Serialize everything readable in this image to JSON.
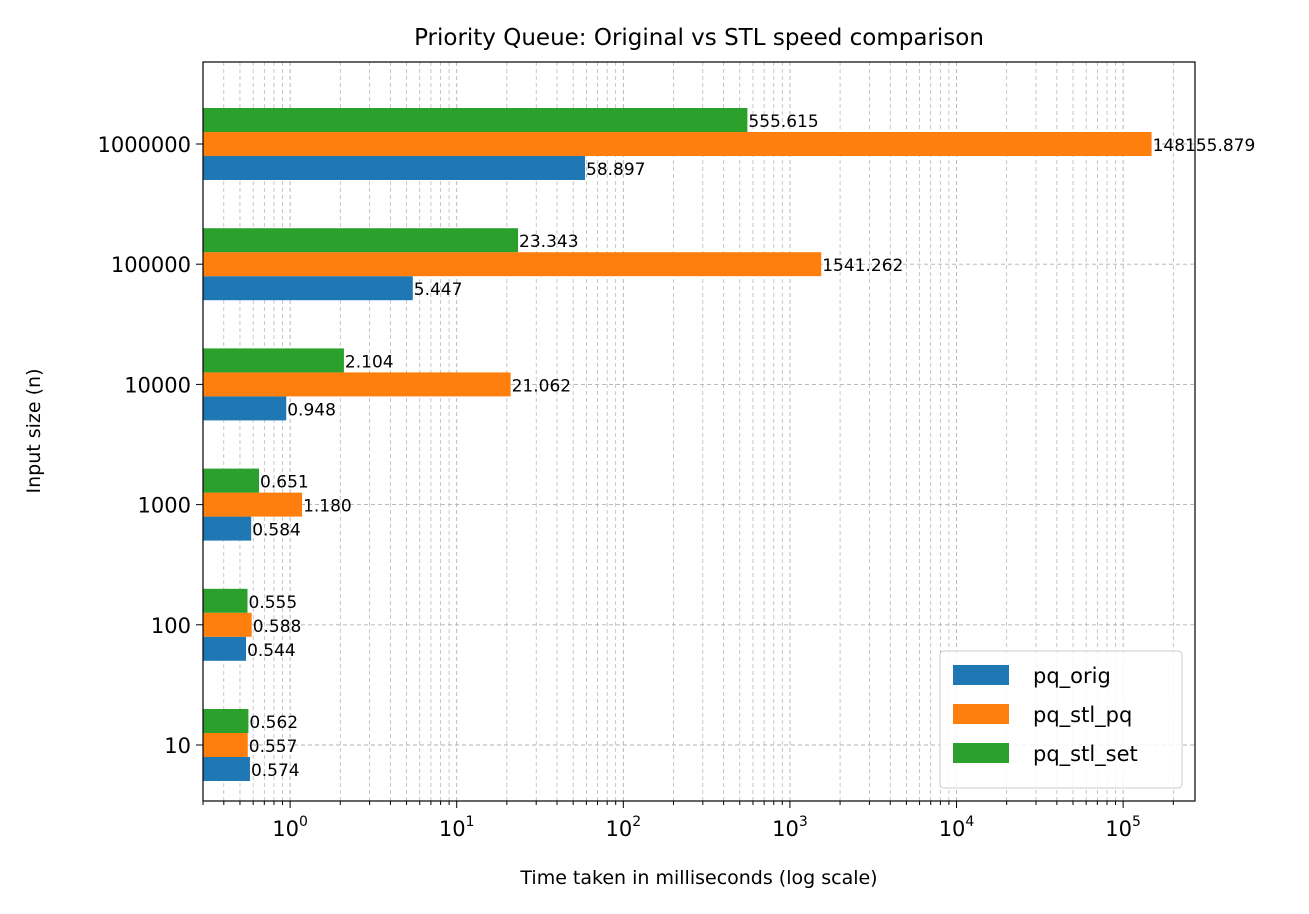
{
  "chart_data": {
    "type": "bar",
    "orientation": "horizontal",
    "title": "Priority Queue: Original vs STL speed comparison",
    "xlabel": "Time taken in milliseconds (log scale)",
    "ylabel": "Input size (n)",
    "x_scale": "log",
    "xlim": [
      0.3,
      270000
    ],
    "x_ticks": [
      {
        "value": 1,
        "base": "10",
        "exp": "0"
      },
      {
        "value": 10,
        "base": "10",
        "exp": "1"
      },
      {
        "value": 100,
        "base": "10",
        "exp": "2"
      },
      {
        "value": 1000,
        "base": "10",
        "exp": "3"
      },
      {
        "value": 10000,
        "base": "10",
        "exp": "4"
      },
      {
        "value": 100000,
        "base": "10",
        "exp": "5"
      }
    ],
    "categories": [
      "10",
      "100",
      "1000",
      "10000",
      "100000",
      "1000000"
    ],
    "series": [
      {
        "name": "pq_orig",
        "color": "#1f77b4",
        "values": [
          0.574,
          0.544,
          0.584,
          0.948,
          5.447,
          58.897
        ],
        "labels": [
          "0.574",
          "0.544",
          "0.584",
          "0.948",
          "5.447",
          "58.897"
        ]
      },
      {
        "name": "pq_stl_pq",
        "color": "#ff7f0e",
        "values": [
          0.557,
          0.588,
          1.18,
          21.062,
          1541.262,
          148155.879
        ],
        "labels": [
          "0.557",
          "0.588",
          "1.180",
          "21.062",
          "1541.262",
          "148155.879"
        ]
      },
      {
        "name": "pq_stl_set",
        "color": "#2ca02c",
        "values": [
          0.562,
          0.555,
          0.651,
          2.104,
          23.343,
          555.615
        ],
        "labels": [
          "0.562",
          "0.555",
          "0.651",
          "2.104",
          "23.343",
          "555.615"
        ]
      }
    ],
    "grid": true,
    "legend_position": "lower-right"
  }
}
